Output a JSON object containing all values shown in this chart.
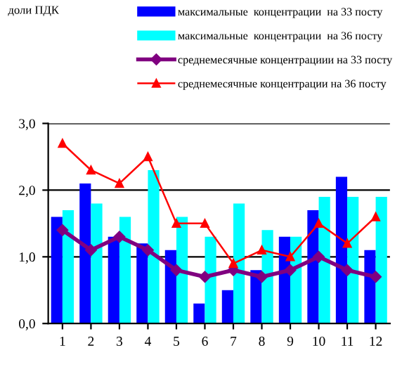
{
  "chart_data": {
    "type": "bar",
    "annotations": [
      "доли ПДК"
    ],
    "categories": [
      "1",
      "2",
      "3",
      "4",
      "5",
      "6",
      "7",
      "8",
      "9",
      "10",
      "11",
      "12"
    ],
    "series": [
      {
        "name": "максимальные  концентрации  на 33 посту",
        "color": "#0000ff",
        "values": [
          1.6,
          2.1,
          1.3,
          1.2,
          1.1,
          0.3,
          0.5,
          0.8,
          1.3,
          1.7,
          2.2,
          1.1
        ]
      },
      {
        "name": "максимальные  концентрации  на 36 посту",
        "color": "#00ffff",
        "values": [
          1.7,
          1.8,
          1.6,
          2.3,
          1.6,
          1.3,
          1.8,
          1.4,
          1.3,
          1.9,
          1.9,
          1.9
        ]
      },
      {
        "name": "среднемесячные концентрациии на 33 посту",
        "type": "line",
        "color": "#800080",
        "marker": "diamond",
        "values": [
          1.4,
          1.1,
          1.3,
          1.1,
          0.8,
          0.7,
          0.8,
          0.7,
          0.8,
          1.0,
          0.8,
          0.7
        ]
      },
      {
        "name": "среднемесячные концентрации на 36 посту",
        "type": "line",
        "color": "#ff0000",
        "marker": "triangle",
        "values": [
          2.7,
          2.3,
          2.1,
          2.5,
          1.5,
          1.5,
          0.9,
          1.1,
          1.0,
          1.5,
          1.2,
          1.6
        ]
      }
    ],
    "ylim": [
      0,
      3
    ],
    "yticks": [
      {
        "value": 0,
        "label": "0,0"
      },
      {
        "value": 1,
        "label": "1,0"
      },
      {
        "value": 2,
        "label": "2,0"
      },
      {
        "value": 3,
        "label": "3,0"
      }
    ],
    "grid": "y",
    "legend": "top"
  }
}
